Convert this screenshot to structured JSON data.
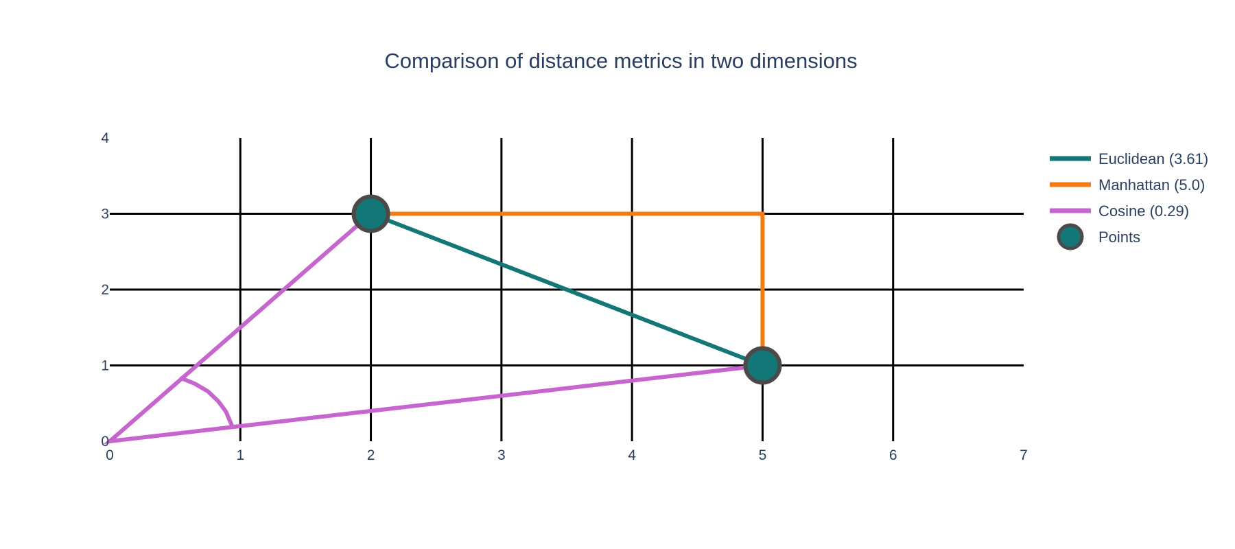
{
  "chart_data": {
    "type": "line",
    "title": "Comparison of distance metrics in two dimensions",
    "xlabel": "",
    "ylabel": "",
    "xlim": [
      0,
      7
    ],
    "ylim": [
      0,
      4
    ],
    "x_ticks": [
      0,
      1,
      2,
      3,
      4,
      5,
      6,
      7
    ],
    "y_ticks": [
      0,
      1,
      2,
      3,
      4
    ],
    "grid": true,
    "legend_position": "top-right",
    "series": [
      {
        "name": "Euclidean (3.61)",
        "color": "#137777",
        "x": [
          2,
          5
        ],
        "y": [
          3,
          1
        ]
      },
      {
        "name": "Manhattan (5.0)",
        "color": "#f57c14",
        "x": [
          2,
          5,
          5
        ],
        "y": [
          3,
          3,
          1
        ]
      },
      {
        "name": "Cosine (0.29)",
        "color": "#c765cf",
        "x": [
          2,
          0,
          5
        ],
        "y": [
          3,
          0,
          1
        ],
        "arc": {
          "x": [
            0.55,
            0.65,
            0.75,
            0.83,
            0.89,
            0.94
          ],
          "y": [
            0.83,
            0.76,
            0.66,
            0.53,
            0.39,
            0.19
          ]
        }
      }
    ],
    "points": {
      "name": "Points",
      "color": "#137777",
      "edge_color": "#4a4a4a",
      "x": [
        2,
        5
      ],
      "y": [
        3,
        1
      ]
    }
  }
}
